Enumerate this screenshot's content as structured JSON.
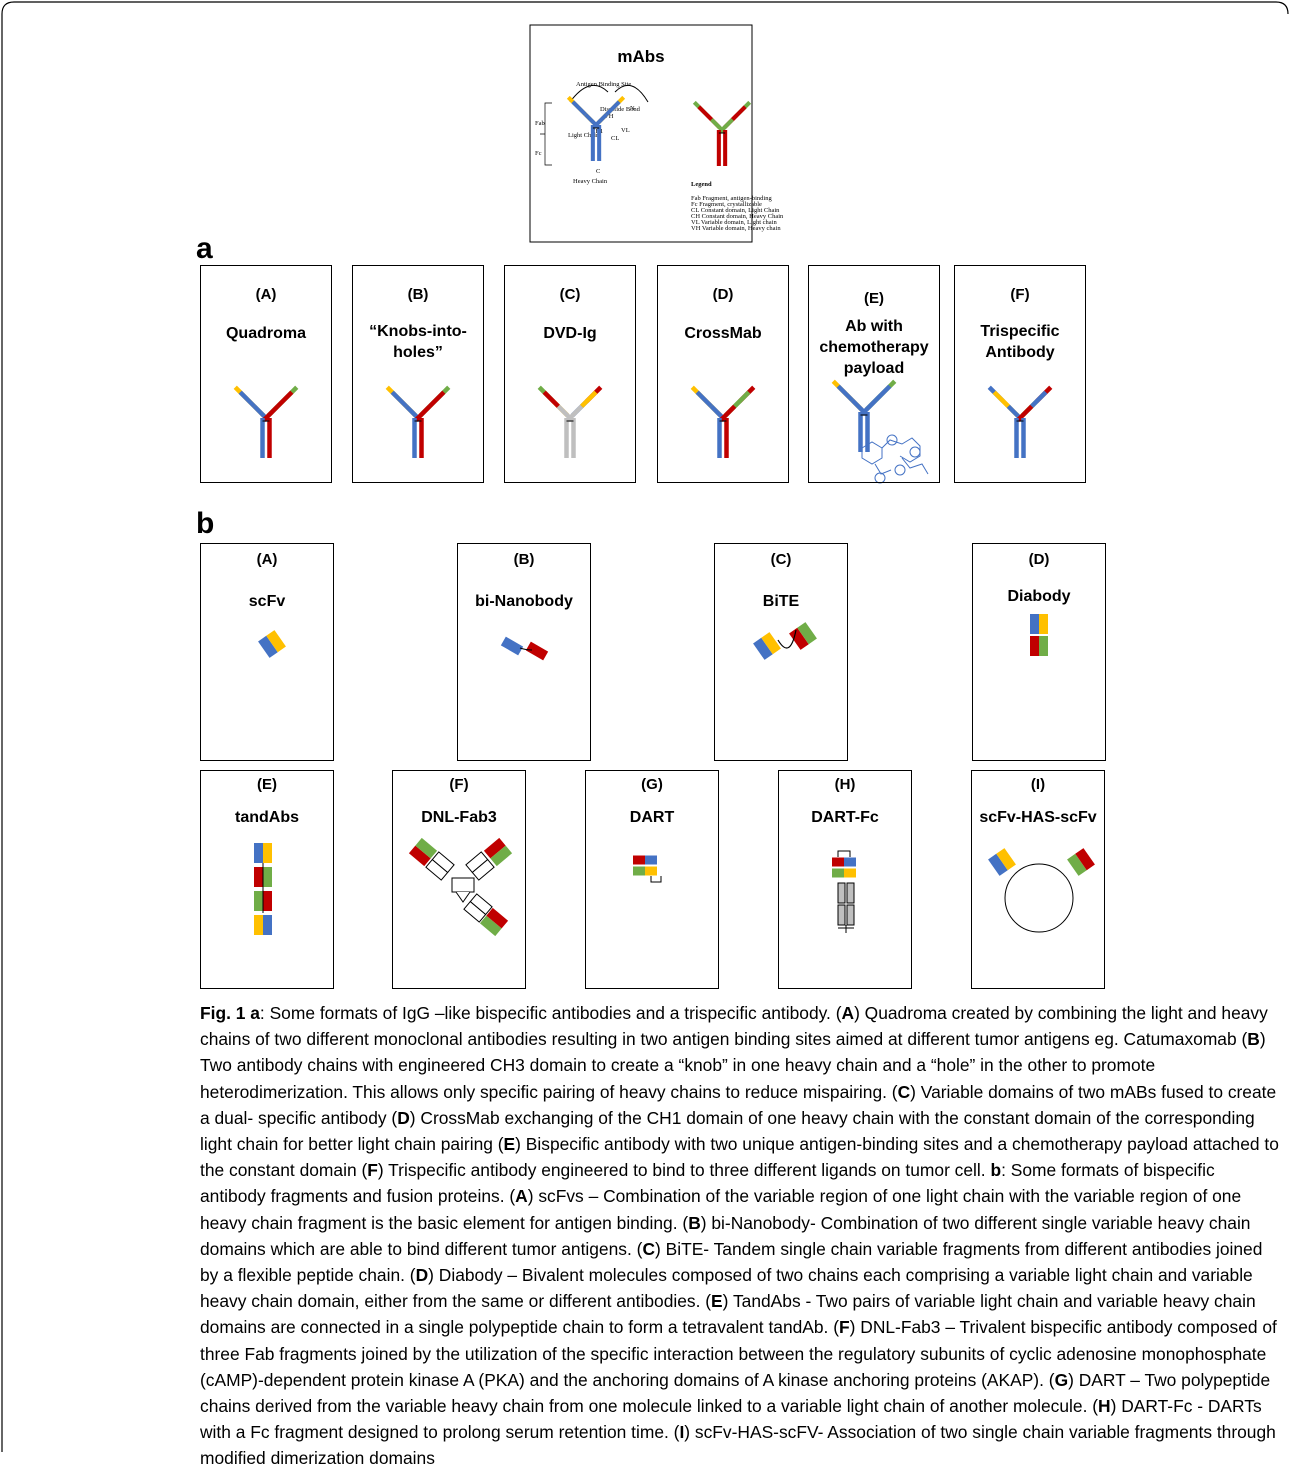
{
  "mabs": {
    "title": "mAbs",
    "diagram_labels": [
      "Antigen Binding Site",
      "Disulfide Bond",
      "VH",
      "CH1",
      "VL",
      "CL",
      "Fab",
      "Fc",
      "Light Chain",
      "Heavy Chain",
      "N",
      "C"
    ],
    "legend": {
      "title": "Legend",
      "items": [
        "Fab Fragment, antigen-binding",
        "Fc Fragment, crystallizable",
        "CL Constant domain, Light Chain",
        "CH Constant domain, Heavy Chain",
        "VL Variable domain, Light chain",
        "VH Variable domain, Heavy chain"
      ]
    }
  },
  "section_a": {
    "label": "a",
    "panels": [
      {
        "letter": "(A)",
        "name": "Quadroma"
      },
      {
        "letter": "(B)",
        "name": "“Knobs-into-holes”"
      },
      {
        "letter": "(C)",
        "name": "DVD-Ig"
      },
      {
        "letter": "(D)",
        "name": "CrossMab"
      },
      {
        "letter": "(E)",
        "name": "Ab with chemotherapy payload"
      },
      {
        "letter": "(F)",
        "name": "Trispecific Antibody"
      }
    ]
  },
  "section_b": {
    "label": "b",
    "panels": [
      {
        "letter": "(A)",
        "name": "scFv"
      },
      {
        "letter": "(B)",
        "name": "bi-Nanobody"
      },
      {
        "letter": "(C)",
        "name": "BiTE"
      },
      {
        "letter": "(D)",
        "name": "Diabody"
      },
      {
        "letter": "(E)",
        "name": "tandAbs"
      },
      {
        "letter": "(F)",
        "name": "DNL-Fab3"
      },
      {
        "letter": "(G)",
        "name": "DART"
      },
      {
        "letter": "(H)",
        "name": "DART-Fc"
      },
      {
        "letter": "(I)",
        "name": "scFv-HAS-scFv"
      }
    ]
  },
  "caption": [
    {
      "text": "Fig. 1 a",
      "bold": true
    },
    {
      "text": ": Some formats of IgG –like bispecific antibodies and a trispecific antibody. (",
      "bold": false
    },
    {
      "text": "A",
      "bold": true
    },
    {
      "text": ") Quadroma created by combining the light and heavy chains of two different monoclonal antibodies resulting in two antigen binding sites aimed at different tumor antigens eg. Catumaxomab (",
      "bold": false
    },
    {
      "text": "B",
      "bold": true
    },
    {
      "text": ") Two antibody chains with engineered CH3 domain to create a “knob” in one heavy chain and a “hole” in the other to promote heterodimerization. This allows only specific pairing of heavy chains to reduce mispairing. (",
      "bold": false
    },
    {
      "text": "C",
      "bold": true
    },
    {
      "text": ") Variable domains of two mABs fused to create a dual- specific antibody (",
      "bold": false
    },
    {
      "text": "D",
      "bold": true
    },
    {
      "text": ") CrossMab exchanging of the CH1 domain of one heavy chain with the constant domain of the corresponding light chain for better light chain pairing (",
      "bold": false
    },
    {
      "text": "E",
      "bold": true
    },
    {
      "text": ") Bispecific antibody with two unique antigen-binding sites and a chemotherapy payload attached to the constant domain (",
      "bold": false
    },
    {
      "text": "F",
      "bold": true
    },
    {
      "text": ") Trispecific antibody engineered to bind to three different ligands on tumor cell. ",
      "bold": false
    },
    {
      "text": "b",
      "bold": true
    },
    {
      "text": ": Some formats of bispecific antibody fragments and fusion proteins. (",
      "bold": false
    },
    {
      "text": "A",
      "bold": true
    },
    {
      "text": ") scFvs – Combination of the variable region of one light chain with the variable region of one heavy chain fragment is the basic element for antigen binding. (",
      "bold": false
    },
    {
      "text": "B",
      "bold": true
    },
    {
      "text": ") bi-Nanobody- Combination of two different single variable heavy chain domains which are able to bind different tumor antigens. (",
      "bold": false
    },
    {
      "text": "C",
      "bold": true
    },
    {
      "text": ") BiTE- Tandem single chain variable fragments from different antibodies joined by a flexible peptide chain. (",
      "bold": false
    },
    {
      "text": "D",
      "bold": true
    },
    {
      "text": ") Diabody – Bivalent molecules composed of two chains each comprising a variable light chain and variable heavy chain domain, either from the same or different antibodies. (",
      "bold": false
    },
    {
      "text": "E",
      "bold": true
    },
    {
      "text": ") TandAbs - Two pairs of variable light chain and variable heavy chain domains are connected in a single polypeptide chain to form a tetravalent tandAb. (",
      "bold": false
    },
    {
      "text": "F",
      "bold": true
    },
    {
      "text": ") DNL-Fab3 – Trivalent bispecific antibody composed of three Fab fragments joined by the utilization of the specific interaction between the regulatory subunits of cyclic adenosine monophosphate (cAMP)-dependent protein kinase A (PKA) and the anchoring domains of A kinase anchoring proteins (AKAP). (",
      "bold": false
    },
    {
      "text": "G",
      "bold": true
    },
    {
      "text": ") DART – Two polypeptide chains derived from the variable heavy chain from one molecule linked to a variable light chain of another molecule. (",
      "bold": false
    },
    {
      "text": "H",
      "bold": true
    },
    {
      "text": ") DART-Fc - DARTs with a Fc fragment designed to prolong serum retention time. (",
      "bold": false
    },
    {
      "text": "I",
      "bold": true
    },
    {
      "text": ") scFv-HAS-scFV- Association of two single chain variable fragments through modified dimerization domains",
      "bold": false
    }
  ]
}
